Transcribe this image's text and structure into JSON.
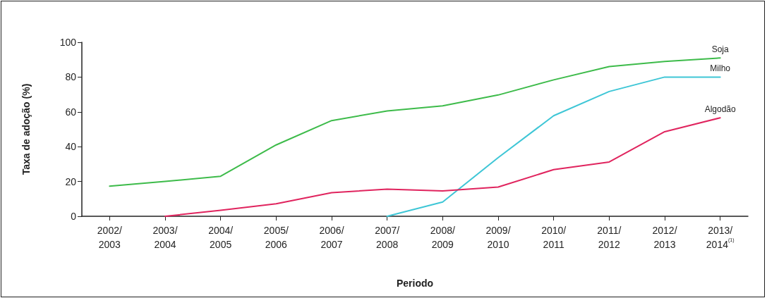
{
  "chart_data": {
    "type": "line",
    "xlabel": "Periodo",
    "ylabel": "Taxa de adoção (%)",
    "categories": [
      "2002/\n2003",
      "2003/\n2004",
      "2004/\n2005",
      "2005/\n2006",
      "2006/\n2007",
      "2007/\n2008",
      "2008/\n2009",
      "2009/\n2010",
      "2010/\n2011",
      "2011/\n2012",
      "2012/\n2013",
      "2013/\n2014$^{(1)}$"
    ],
    "series": [
      {
        "name": "Soja",
        "color": "#3dbb4a",
        "values": [
          17.3,
          20,
          23,
          41,
          55,
          60.5,
          63.5,
          69.7,
          78.4,
          86,
          89,
          91
        ]
      },
      {
        "name": "Milho",
        "color": "#3ec6d6",
        "values": [
          null,
          null,
          null,
          null,
          null,
          0,
          8.2,
          33.7,
          57.8,
          71.7,
          80,
          80
        ]
      },
      {
        "name": "Algodão",
        "color": "#e0245e",
        "values": [
          null,
          0,
          3.4,
          7.2,
          13.6,
          15.6,
          14.6,
          16.8,
          26.8,
          31.2,
          48.6,
          56.6
        ]
      }
    ],
    "ylim": [
      0,
      100
    ],
    "yticks": [
      0,
      20,
      40,
      60,
      80,
      100
    ],
    "grid": false,
    "legend": false,
    "marker": "none",
    "line_style": "solid"
  }
}
